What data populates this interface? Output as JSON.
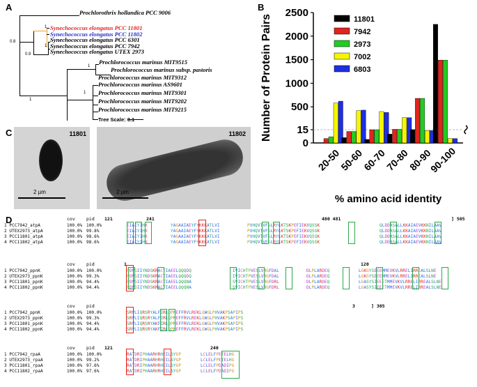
{
  "panels": {
    "a": "A",
    "b": "B",
    "c": "C",
    "d": "D"
  },
  "tree": {
    "taxa": [
      {
        "name": "Prochlorothrix hollandica PCC 9006",
        "color": "#000000"
      },
      {
        "name": "Synechococcus elongatus PCC 11801",
        "color": "#e0241e"
      },
      {
        "name": "Synechococcus elongatus PCC 11802",
        "color": "#2233cc"
      },
      {
        "name": "Synechococcus elongatus PCC 6301",
        "color": "#000000"
      },
      {
        "name": "Synechococcus elongatus PCC 7942",
        "color": "#000000"
      },
      {
        "name": "Synechococcus elongatus UTEX 2973",
        "color": "#000000"
      },
      {
        "name": "Prochlorococcus marinus MIT9515",
        "color": "#000000"
      },
      {
        "name": "Prochlorococcus marinus subsp. pastoris",
        "color": "#000000"
      },
      {
        "name": "Prochlorococcus marinus MIT9312",
        "color": "#000000"
      },
      {
        "name": "Prochlorococcus marinus AS9601",
        "color": "#000000"
      },
      {
        "name": "Prochlorococcus marinus MIT9301",
        "color": "#000000"
      },
      {
        "name": "Prochlorococcus marinus MIT9202",
        "color": "#000000"
      },
      {
        "name": "Prochlorococcus marinus MIT9215",
        "color": "#000000"
      }
    ],
    "bootstraps": [
      "1",
      "1",
      "0.8",
      "0.9",
      "1",
      "1",
      "1",
      "1",
      "1",
      "1",
      "1",
      "1",
      "1",
      "1"
    ],
    "scale_label": "Tree Scale: 0.1",
    "highlight_color": "#f0a030"
  },
  "micrographs": {
    "left_label": "11801",
    "right_label": "11802",
    "scale_left": "2 µm",
    "scale_right": "2 µm"
  },
  "chart_data": {
    "type": "bar",
    "categories": [
      "20-50",
      "50-60",
      "60-70",
      "70-80",
      "80-90",
      "90-100"
    ],
    "series": [
      {
        "name": "11801",
        "color": "#000000",
        "values": [
          0,
          6,
          4,
          10,
          17,
          2250
        ]
      },
      {
        "name": "7942",
        "color": "#e0241e",
        "values": [
          5,
          13,
          15,
          24,
          680,
          1490
        ]
      },
      {
        "name": "2973",
        "color": "#22cc22",
        "values": [
          7,
          13,
          15,
          24,
          680,
          1490
        ]
      },
      {
        "name": "7002",
        "color": "#f5f500",
        "values": [
          580,
          420,
          400,
          270,
          14,
          5
        ]
      },
      {
        "name": "6803",
        "color": "#1f2fe0",
        "values": [
          620,
          430,
          380,
          270,
          14,
          5
        ]
      }
    ],
    "ytick_labels": [
      "0",
      "15",
      "500",
      "1000",
      "1500",
      "2000",
      "2500"
    ],
    "xlabel": "% amino acid identity",
    "ylabel": "Number of Protein Pairs",
    "legend_position": "top-right"
  },
  "alignments": {
    "col_headers": {
      "cov": "cov",
      "pid": "pid"
    },
    "blocks": [
      {
        "pos": [
          "121",
          "241",
          "480 481",
          "] 505"
        ],
        "rows": [
          {
            "label": "1 PCC7942_atpA",
            "cov": "100.0%",
            "pid": "100.0%",
            "segs": [
              "EIAIYIHK",
              "YAGAAIAEYFYKKKATLVI",
              "PVHQVTVFSLRYLKTSKPEFIEKVQSSK",
              "QLDDASALLKKAIAEVKKNILAAV"
            ]
          },
          {
            "label": "2 UTEX2973_atpA",
            "cov": "100.0%",
            "pid": "99.8%",
            "segs": [
              "EIAIYIHK",
              "YAGAAIAEYFYKKKATLVI",
              "PVHQVTVFSLRYLKTSKPEFIEKVQSSK",
              "QLDDASALLKKAIAEVKKNILAAV"
            ]
          },
          {
            "label": "3 PCC11801_atpA",
            "cov": "100.0%",
            "pid": "98.6%",
            "segs": [
              "EIAIYIHK",
              "YAGAAIAEYFYKKKATLVI",
              "PVHQVTVFSLRYLKTSKPEFIEKVQSSK",
              "QLDDASALLKKAIAEVKKNILAAV"
            ]
          },
          {
            "label": "4 PCC11802_atpA",
            "cov": "100.0%",
            "pid": "98.6%",
            "segs": [
              "EIAIYIHK",
              "YAGAAIAEYFYKKKATLVI",
              "PVHQVTVFSLRYLKTSKPEFIEKVQSSK",
              "QLDDASALLKKAIAEVKKNILAAV"
            ]
          }
        ]
      },
      {
        "pos": [
          "1",
          "120"
        ],
        "rows": [
          {
            "label": "1 PCC7942_ppnK",
            "cov": "100.0%",
            "pid": "100.0%",
            "segs": [
              "PDVGIIYNDSKRACTIAEELQQQDQ",
              "IVICHTPVESLVRGFDAL",
              "DLPLARDEQ",
              "LGKGYSEEEMMEVKVLRRELIRREALSLNE"
            ]
          },
          {
            "label": "2 UTEX2973_ppnK",
            "cov": "100.0%",
            "pid": "99.3%",
            "segs": [
              "PDVGIIYNDSKRACTIAEELQQQDQ",
              "IVICHTPVESLVRGFDAL",
              "DLPLARDEQ",
              "LGKGYSEEEMMEVKVLRRELIRREALSLNE"
            ]
          },
          {
            "label": "3 PCC11801_ppnK",
            "cov": "100.0%",
            "pid": "94.4%",
            "segs": [
              "PDVGIIYNDSKRACTIAEELQQQNA",
              "SVICHTPVESLVRGFDRL",
              "DLPLARDEQ",
              "LGASYSIEEETMMEVKVLRRELIRREALSLNE"
            ]
          },
          {
            "label": "4 PCC11802_ppnK",
            "cov": "100.0%",
            "pid": "94.4%",
            "segs": [
              "PDVGIIYNDSKRACTIAEELQQQNA",
              "SVICHTPVESLVRGFDRL",
              "DLPLARDEQ",
              "LGASYSIEEETMMEVKVLRRELIRREALSLNE"
            ]
          }
        ]
      },
      {
        "pos": [
          "3",
          "] 305"
        ],
        "rows": [
          {
            "label": "1 PCC7942_ppnK",
            "cov": "100.0%",
            "pid": "100.0%",
            "segs": [
              "SRVLIQRSRYALFIRLQPNEFFRVLREKLGWGLPHVAKPSAPIPS"
            ]
          },
          {
            "label": "2 UTEX2973_ppnK",
            "cov": "100.0%",
            "pid": "99.3%",
            "segs": [
              "SRVLIQRSRYALFIRLQPNEFFRVLREKLGWGLPHVAKPSAPIPS"
            ]
          },
          {
            "label": "3 PCC11801_ppnK",
            "cov": "100.0%",
            "pid": "94.4%",
            "segs": [
              "SRVLIQRSRYAKFIRLQPNEFFRVLREKLGWGLPHVAKPSAPIPS"
            ]
          },
          {
            "label": "4 PCC11802_ppnK",
            "cov": "100.0%",
            "pid": "94.4%",
            "segs": [
              "SRVLIQRSRYAKFIRLQPNEFFRVLREKLGWGLPHVAKPSAPIPS"
            ]
          }
        ]
      },
      {
        "pos": [
          "121",
          "240"
        ],
        "rows": [
          {
            "label": "1 PCC7942_rpaA",
            "cov": "100.0%",
            "pid": "100.0%",
            "segs": [
              "RATDRIPHAARHRHEILSYGP",
              "LCLELFPETELHG"
            ]
          },
          {
            "label": "2 UTEX2973_rpaA",
            "cov": "100.0%",
            "pid": "99.2%",
            "segs": [
              "RATDRIPHAARHRHEILSYGP",
              "LCLELFPETELHG"
            ]
          },
          {
            "label": "3 PCC11801_rpaA",
            "cov": "100.0%",
            "pid": "97.6%",
            "segs": [
              "RATDRIPHAARHRHEILSYGP",
              "LCLELFPDADIPG"
            ]
          },
          {
            "label": "4 PCC11802_rpaA",
            "cov": "100.0%",
            "pid": "97.6%",
            "segs": [
              "RATDRIPHAARHRHEILSYGP",
              "LCLELFPDADIPG"
            ]
          }
        ]
      }
    ]
  }
}
